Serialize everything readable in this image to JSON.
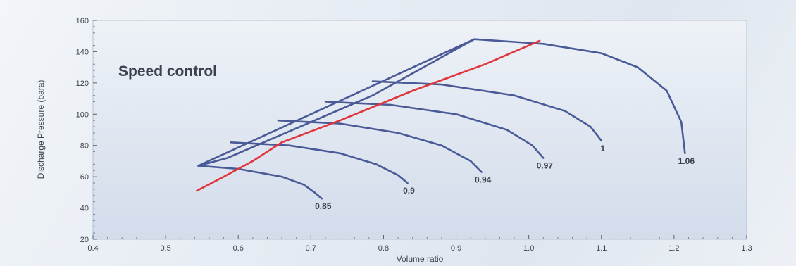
{
  "chart_data": {
    "type": "line",
    "annotation": "Speed control",
    "xlabel": "Volume ratio",
    "ylabel": "Discharge Pressure (bara)",
    "xlim": [
      0.4,
      1.3
    ],
    "ylim": [
      20,
      160
    ],
    "xticks": [
      "0.4",
      "0.5",
      "0.6",
      "0.7",
      "0.8",
      "0.9",
      "1.0",
      "1.1",
      "1.2",
      "1.3"
    ],
    "yticks": [
      "20",
      "40",
      "60",
      "80",
      "100",
      "120",
      "140",
      "160"
    ],
    "colors": {
      "curve": "#4a5a96",
      "control_line": "#e0353d",
      "plot_bg_top": "#eef2f7",
      "plot_bg_bottom": "#d2dceb"
    },
    "series": [
      {
        "label": "0.85",
        "x": [
          0.545,
          0.6,
          0.66,
          0.69,
          0.705,
          0.715
        ],
        "y": [
          67,
          65,
          60,
          55,
          50,
          46
        ]
      },
      {
        "label": "0.9",
        "x": [
          0.59,
          0.67,
          0.74,
          0.79,
          0.82,
          0.833
        ],
        "y": [
          82,
          80,
          75,
          68,
          61,
          56
        ]
      },
      {
        "label": "0.94",
        "x": [
          0.655,
          0.74,
          0.82,
          0.88,
          0.92,
          0.935
        ],
        "y": [
          96,
          94,
          88,
          80,
          70,
          63
        ]
      },
      {
        "label": "0.97",
        "x": [
          0.72,
          0.81,
          0.9,
          0.97,
          1.005,
          1.02
        ],
        "y": [
          108,
          106,
          100,
          90,
          80,
          72
        ]
      },
      {
        "label": "1",
        "x": [
          0.785,
          0.88,
          0.98,
          1.05,
          1.085,
          1.1
        ],
        "y": [
          121,
          119,
          112,
          102,
          92,
          83
        ]
      },
      {
        "label": "1.06",
        "x": [
          0.925,
          1.02,
          1.1,
          1.15,
          1.19,
          1.21,
          1.215
        ],
        "y": [
          148,
          145,
          139,
          130,
          115,
          95,
          75
        ]
      }
    ],
    "envelope": {
      "x": [
        0.925,
        0.545,
        0.585,
        0.655,
        0.72,
        0.785,
        0.925
      ],
      "y": [
        148,
        67,
        72,
        86,
        99,
        112,
        148
      ]
    },
    "control_line": {
      "x": [
        0.543,
        0.58,
        0.62,
        0.66,
        0.74,
        0.84,
        0.94,
        1.015
      ],
      "y": [
        51,
        60,
        70,
        82,
        96,
        115,
        132,
        147
      ]
    }
  }
}
